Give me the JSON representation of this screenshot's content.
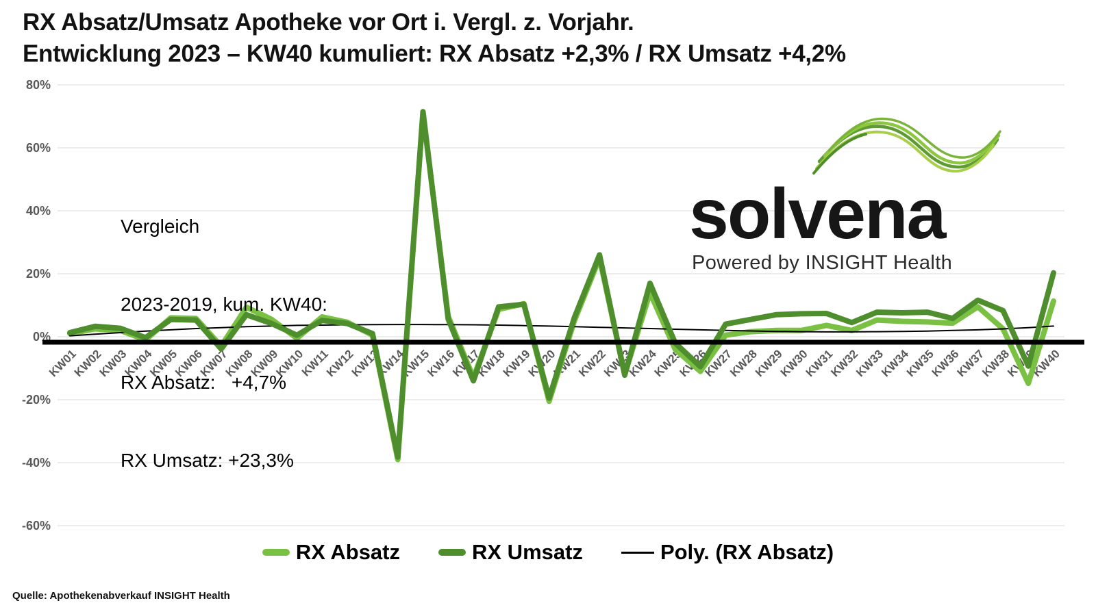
{
  "title": {
    "line1": "RX Absatz/Umsatz Apotheke vor Ort i. Vergl. z. Vorjahr.",
    "line2": "Entwicklung 2023 – KW40 kumuliert: RX Absatz +2,3% / RX Umsatz +4,2%"
  },
  "annotation": {
    "lines": [
      "Vergleich",
      "2023-2019, kum. KW40:",
      "RX Absatz:   +4,7%",
      "RX Umsatz: +23,3%"
    ]
  },
  "logo": {
    "name": "solvena",
    "tagline": "Powered by INSIGHT Health",
    "wave_colors": [
      "#5E9C33",
      "#8DC63F",
      "#A7CF4C",
      "#79B338",
      "#4F8F2A"
    ]
  },
  "source": "Quelle: Apothekenabverkauf INSIGHT Health",
  "legend": [
    {
      "label": "RX Absatz",
      "color": "#7AC143",
      "style": "thick"
    },
    {
      "label": "RX Umsatz",
      "color": "#4E8E2C",
      "style": "thick"
    },
    {
      "label": "Poly. (RX Absatz)",
      "color": "#000000",
      "style": "thin"
    }
  ],
  "colors": {
    "absatz_green": "#7AC143",
    "umsatz_green": "#4E8E2C",
    "poly_black": "#000000",
    "gridline": "#d9d9d9",
    "axis_label": "#595959",
    "zero_axis": "#000000"
  },
  "chart_data": {
    "type": "line",
    "title": "RX Absatz/Umsatz Apotheke vor Ort im Vergleich zum Vorjahr, Entwicklung 2023",
    "categories": [
      "KW01",
      "KW02",
      "KW03",
      "KW04",
      "KW05",
      "KW06",
      "KW07",
      "KW08",
      "KW09",
      "KW10",
      "KW11",
      "KW12",
      "KW13",
      "KW14",
      "KW15",
      "KW16",
      "KW17",
      "KW18",
      "KW19",
      "KW20",
      "KW21",
      "KW22",
      "KW23",
      "KW24",
      "KW25",
      "KW26",
      "KW27",
      "KW28",
      "KW29",
      "KW30",
      "KW31",
      "KW32",
      "KW33",
      "KW34",
      "KW35",
      "KW36",
      "KW37",
      "KW38",
      "KW39",
      "KW40"
    ],
    "series": [
      {
        "name": "RX Absatz",
        "color": "#7AC143",
        "width": 8,
        "values": [
          1.0,
          2.5,
          2.0,
          -1.0,
          6.0,
          5.8,
          -3.0,
          9.4,
          5.5,
          -0.5,
          6.3,
          4.6,
          0.5,
          -39.0,
          71.0,
          6.5,
          -13.0,
          8.7,
          10.5,
          -20.5,
          5.0,
          25.0,
          -12.0,
          14.0,
          -4.0,
          -11.0,
          0.5,
          1.6,
          2.0,
          2.0,
          3.6,
          2.0,
          5.3,
          4.9,
          4.7,
          4.3,
          9.5,
          2.5,
          -14.8,
          11.3
        ]
      },
      {
        "name": "RX Umsatz",
        "color": "#4E8E2C",
        "width": 8,
        "values": [
          1.3,
          3.3,
          2.7,
          -0.3,
          5.5,
          5.3,
          -3.9,
          7.0,
          4.2,
          0.5,
          5.2,
          4.2,
          1.0,
          -38.2,
          71.5,
          5.6,
          -14.0,
          9.5,
          10.3,
          -19.5,
          6.0,
          26.0,
          -12.2,
          17.0,
          -2.0,
          -9.5,
          4.0,
          5.5,
          7.0,
          7.3,
          7.4,
          4.5,
          7.8,
          7.6,
          7.8,
          5.8,
          11.6,
          8.3,
          -9.3,
          20.3
        ]
      },
      {
        "name": "Poly. (RX Absatz)",
        "color": "#000000",
        "width": 2,
        "values": [
          0.3,
          0.8,
          1.3,
          1.8,
          2.2,
          2.6,
          2.9,
          3.2,
          3.4,
          3.6,
          3.7,
          3.8,
          3.85,
          3.9,
          3.9,
          3.85,
          3.8,
          3.7,
          3.55,
          3.4,
          3.2,
          3.0,
          2.8,
          2.6,
          2.4,
          2.2,
          2.0,
          1.85,
          1.7,
          1.6,
          1.55,
          1.55,
          1.6,
          1.7,
          1.8,
          2.0,
          2.2,
          2.5,
          2.9,
          3.4
        ]
      }
    ],
    "ylim": [
      -60,
      80
    ],
    "yticks": [
      80,
      60,
      40,
      20,
      0,
      -20,
      -40,
      -60
    ],
    "ytick_format": "{v}%",
    "xlabel": "",
    "ylabel": "",
    "grid": "horizontal",
    "legend_position": "bottom"
  }
}
